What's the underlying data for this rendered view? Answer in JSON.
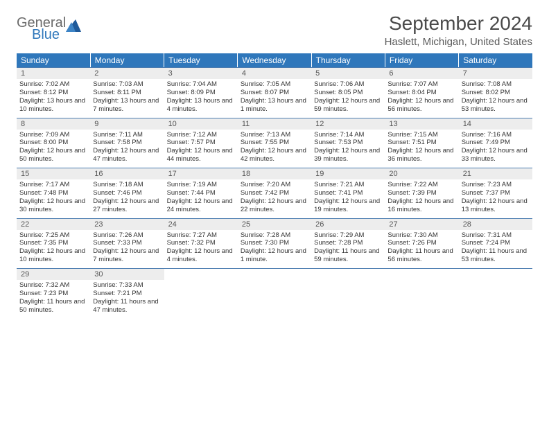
{
  "logo": {
    "general": "General",
    "blue": "Blue"
  },
  "title": "September 2024",
  "location": "Haslett, Michigan, United States",
  "colors": {
    "header_bg": "#2f77bb",
    "header_text": "#ffffff",
    "daynum_bg": "#ededed",
    "cell_border": "#4a7bb0",
    "logo_gray": "#6b6b6b",
    "logo_blue": "#2f77bb"
  },
  "weekdays": [
    "Sunday",
    "Monday",
    "Tuesday",
    "Wednesday",
    "Thursday",
    "Friday",
    "Saturday"
  ],
  "weeks": [
    [
      {
        "num": "1",
        "sunrise": "Sunrise: 7:02 AM",
        "sunset": "Sunset: 8:12 PM",
        "daylight": "Daylight: 13 hours and 10 minutes."
      },
      {
        "num": "2",
        "sunrise": "Sunrise: 7:03 AM",
        "sunset": "Sunset: 8:11 PM",
        "daylight": "Daylight: 13 hours and 7 minutes."
      },
      {
        "num": "3",
        "sunrise": "Sunrise: 7:04 AM",
        "sunset": "Sunset: 8:09 PM",
        "daylight": "Daylight: 13 hours and 4 minutes."
      },
      {
        "num": "4",
        "sunrise": "Sunrise: 7:05 AM",
        "sunset": "Sunset: 8:07 PM",
        "daylight": "Daylight: 13 hours and 1 minute."
      },
      {
        "num": "5",
        "sunrise": "Sunrise: 7:06 AM",
        "sunset": "Sunset: 8:05 PM",
        "daylight": "Daylight: 12 hours and 59 minutes."
      },
      {
        "num": "6",
        "sunrise": "Sunrise: 7:07 AM",
        "sunset": "Sunset: 8:04 PM",
        "daylight": "Daylight: 12 hours and 56 minutes."
      },
      {
        "num": "7",
        "sunrise": "Sunrise: 7:08 AM",
        "sunset": "Sunset: 8:02 PM",
        "daylight": "Daylight: 12 hours and 53 minutes."
      }
    ],
    [
      {
        "num": "8",
        "sunrise": "Sunrise: 7:09 AM",
        "sunset": "Sunset: 8:00 PM",
        "daylight": "Daylight: 12 hours and 50 minutes."
      },
      {
        "num": "9",
        "sunrise": "Sunrise: 7:11 AM",
        "sunset": "Sunset: 7:58 PM",
        "daylight": "Daylight: 12 hours and 47 minutes."
      },
      {
        "num": "10",
        "sunrise": "Sunrise: 7:12 AM",
        "sunset": "Sunset: 7:57 PM",
        "daylight": "Daylight: 12 hours and 44 minutes."
      },
      {
        "num": "11",
        "sunrise": "Sunrise: 7:13 AM",
        "sunset": "Sunset: 7:55 PM",
        "daylight": "Daylight: 12 hours and 42 minutes."
      },
      {
        "num": "12",
        "sunrise": "Sunrise: 7:14 AM",
        "sunset": "Sunset: 7:53 PM",
        "daylight": "Daylight: 12 hours and 39 minutes."
      },
      {
        "num": "13",
        "sunrise": "Sunrise: 7:15 AM",
        "sunset": "Sunset: 7:51 PM",
        "daylight": "Daylight: 12 hours and 36 minutes."
      },
      {
        "num": "14",
        "sunrise": "Sunrise: 7:16 AM",
        "sunset": "Sunset: 7:49 PM",
        "daylight": "Daylight: 12 hours and 33 minutes."
      }
    ],
    [
      {
        "num": "15",
        "sunrise": "Sunrise: 7:17 AM",
        "sunset": "Sunset: 7:48 PM",
        "daylight": "Daylight: 12 hours and 30 minutes."
      },
      {
        "num": "16",
        "sunrise": "Sunrise: 7:18 AM",
        "sunset": "Sunset: 7:46 PM",
        "daylight": "Daylight: 12 hours and 27 minutes."
      },
      {
        "num": "17",
        "sunrise": "Sunrise: 7:19 AM",
        "sunset": "Sunset: 7:44 PM",
        "daylight": "Daylight: 12 hours and 24 minutes."
      },
      {
        "num": "18",
        "sunrise": "Sunrise: 7:20 AM",
        "sunset": "Sunset: 7:42 PM",
        "daylight": "Daylight: 12 hours and 22 minutes."
      },
      {
        "num": "19",
        "sunrise": "Sunrise: 7:21 AM",
        "sunset": "Sunset: 7:41 PM",
        "daylight": "Daylight: 12 hours and 19 minutes."
      },
      {
        "num": "20",
        "sunrise": "Sunrise: 7:22 AM",
        "sunset": "Sunset: 7:39 PM",
        "daylight": "Daylight: 12 hours and 16 minutes."
      },
      {
        "num": "21",
        "sunrise": "Sunrise: 7:23 AM",
        "sunset": "Sunset: 7:37 PM",
        "daylight": "Daylight: 12 hours and 13 minutes."
      }
    ],
    [
      {
        "num": "22",
        "sunrise": "Sunrise: 7:25 AM",
        "sunset": "Sunset: 7:35 PM",
        "daylight": "Daylight: 12 hours and 10 minutes."
      },
      {
        "num": "23",
        "sunrise": "Sunrise: 7:26 AM",
        "sunset": "Sunset: 7:33 PM",
        "daylight": "Daylight: 12 hours and 7 minutes."
      },
      {
        "num": "24",
        "sunrise": "Sunrise: 7:27 AM",
        "sunset": "Sunset: 7:32 PM",
        "daylight": "Daylight: 12 hours and 4 minutes."
      },
      {
        "num": "25",
        "sunrise": "Sunrise: 7:28 AM",
        "sunset": "Sunset: 7:30 PM",
        "daylight": "Daylight: 12 hours and 1 minute."
      },
      {
        "num": "26",
        "sunrise": "Sunrise: 7:29 AM",
        "sunset": "Sunset: 7:28 PM",
        "daylight": "Daylight: 11 hours and 59 minutes."
      },
      {
        "num": "27",
        "sunrise": "Sunrise: 7:30 AM",
        "sunset": "Sunset: 7:26 PM",
        "daylight": "Daylight: 11 hours and 56 minutes."
      },
      {
        "num": "28",
        "sunrise": "Sunrise: 7:31 AM",
        "sunset": "Sunset: 7:24 PM",
        "daylight": "Daylight: 11 hours and 53 minutes."
      }
    ],
    [
      {
        "num": "29",
        "sunrise": "Sunrise: 7:32 AM",
        "sunset": "Sunset: 7:23 PM",
        "daylight": "Daylight: 11 hours and 50 minutes."
      },
      {
        "num": "30",
        "sunrise": "Sunrise: 7:33 AM",
        "sunset": "Sunset: 7:21 PM",
        "daylight": "Daylight: 11 hours and 47 minutes."
      },
      null,
      null,
      null,
      null,
      null
    ]
  ]
}
